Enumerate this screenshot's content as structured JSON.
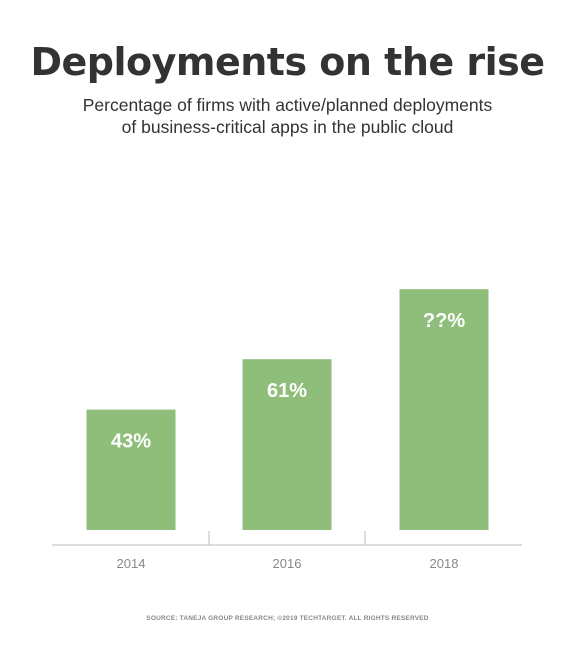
{
  "title": "Deployments on the rise",
  "subtitle_lines": [
    "Percentage of firms with active/planned deployments",
    "of business-critical apps in the public cloud"
  ],
  "source": "SOURCE: TANEJA GROUP RESEARCH; ©2019 TECHTARGET. ALL RIGHTS RESERVED",
  "colors": {
    "bar": "#8fbe7b",
    "bar_label": "#ffffff",
    "axis": "#bbbbbb",
    "tick_label": "#888888",
    "title": "#333333"
  },
  "chart_data": {
    "type": "bar",
    "categories": [
      "2014",
      "2016",
      "2018"
    ],
    "values": [
      43,
      61,
      86
    ],
    "data_labels": [
      "43%",
      "61%",
      "??%"
    ],
    "ylim": [
      0,
      100
    ],
    "grid": false,
    "xlabel": "",
    "ylabel": ""
  }
}
